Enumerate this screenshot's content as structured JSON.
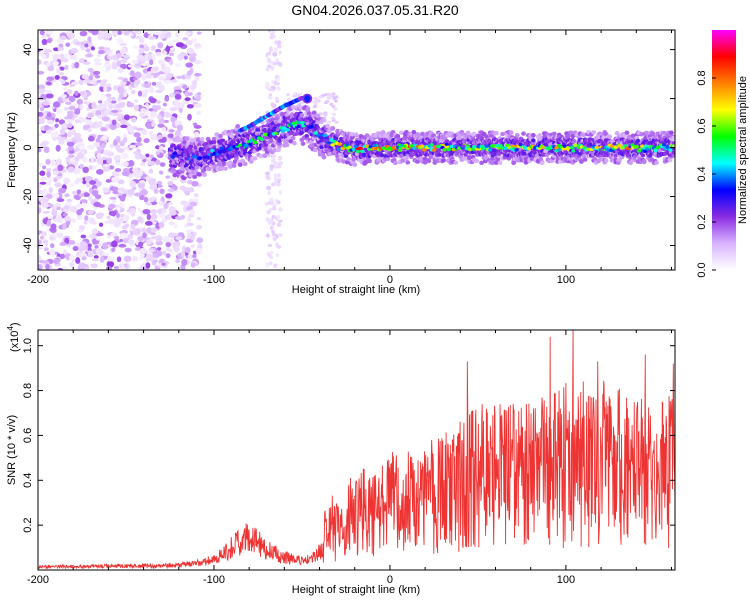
{
  "figure_title": "GN04.2026.037.05.31.R20",
  "chart_data": [
    {
      "type": "heatmap",
      "title": "GN04.2026.037.05.31.R20",
      "xlabel": "Height of straight line (km)",
      "ylabel": "Frequency (Hz)",
      "xlim": [
        -200,
        162
      ],
      "ylim": [
        -50,
        48
      ],
      "x_ticks": [
        -200,
        -100,
        0,
        100
      ],
      "y_ticks": [
        -40,
        -20,
        0,
        20,
        40
      ],
      "x_tick_labels": [
        "-200",
        "-100",
        "0",
        "100"
      ],
      "y_tick_labels": [
        "-40",
        "-20",
        "0",
        "20",
        "40"
      ],
      "colorbar": {
        "label": "Normalized spectral amplitude",
        "range": [
          0,
          1
        ],
        "ticks": [
          0.0,
          0.2,
          0.4,
          0.6,
          0.8
        ],
        "tick_labels": [
          "0.0",
          "0.2",
          "0.4",
          "0.6",
          "0.8"
        ],
        "colormap": [
          "#ffffff",
          "#d9b3ff",
          "#8a2be2",
          "#0000ff",
          "#00ffff",
          "#00ff00",
          "#ffff00",
          "#ff8000",
          "#ff0000",
          "#ff00ff"
        ]
      },
      "ridge": {
        "x": [
          -125,
          -110,
          -95,
          -80,
          -70,
          -60,
          -50,
          -45,
          -38,
          -30,
          -20,
          -10,
          0,
          20,
          40,
          60,
          80,
          100,
          120,
          140,
          162
        ],
        "y": [
          -3,
          -4,
          -1,
          2,
          5,
          8,
          10,
          8,
          4,
          1,
          -1,
          0,
          0,
          0,
          0,
          0,
          0,
          0,
          0,
          0,
          0
        ],
        "peak_amplitude": [
          0.35,
          0.4,
          0.5,
          0.55,
          0.6,
          0.55,
          0.5,
          0.45,
          0.5,
          0.85,
          0.9,
          0.85,
          0.9,
          0.8,
          0.7,
          0.75,
          0.7,
          0.75,
          0.7,
          0.8,
          0.65
        ]
      },
      "noise_region_x": [
        -200,
        -108
      ],
      "noise_streak_x": [
        -70,
        -62
      ],
      "blob": {
        "x": -47,
        "y": 20
      }
    },
    {
      "type": "line",
      "xlabel": "Height of straight line (km)",
      "ylabel": "SNR (10 * v/v)",
      "y_multiplier": "(x10",
      "y_exponent": "4",
      "xlim": [
        -200,
        162
      ],
      "ylim": [
        0,
        1.07
      ],
      "x_ticks": [
        -200,
        -100,
        0,
        100
      ],
      "y_ticks": [
        0.2,
        0.4,
        0.6,
        0.8,
        1.0
      ],
      "x_tick_labels": [
        "-200",
        "-100",
        "0",
        "100"
      ],
      "y_tick_labels": [
        "0.2",
        "0.4",
        "0.6",
        "0.8",
        "1.0"
      ],
      "series_color": "#ee3333",
      "envelope": {
        "x": [
          -200,
          -120,
          -105,
          -95,
          -88,
          -82,
          -77,
          -70,
          -60,
          -50,
          -38,
          -37,
          -30,
          -20,
          -10,
          0,
          10,
          20,
          30,
          40,
          50,
          60,
          80,
          100,
          120,
          140,
          162
        ],
        "y": [
          0.02,
          0.03,
          0.05,
          0.1,
          0.16,
          0.2,
          0.19,
          0.13,
          0.08,
          0.06,
          0.12,
          0.28,
          0.33,
          0.4,
          0.45,
          0.5,
          0.5,
          0.52,
          0.58,
          0.66,
          0.7,
          0.72,
          0.7,
          0.78,
          0.8,
          0.72,
          0.75
        ]
      },
      "peaks": [
        {
          "x": 104,
          "y": 1.07
        },
        {
          "x": 91,
          "y": 1.04
        },
        {
          "x": 44,
          "y": 0.93
        },
        {
          "x": 145,
          "y": 0.96
        },
        {
          "x": 161,
          "y": 0.92
        },
        {
          "x": 118,
          "y": 0.93
        }
      ]
    }
  ]
}
